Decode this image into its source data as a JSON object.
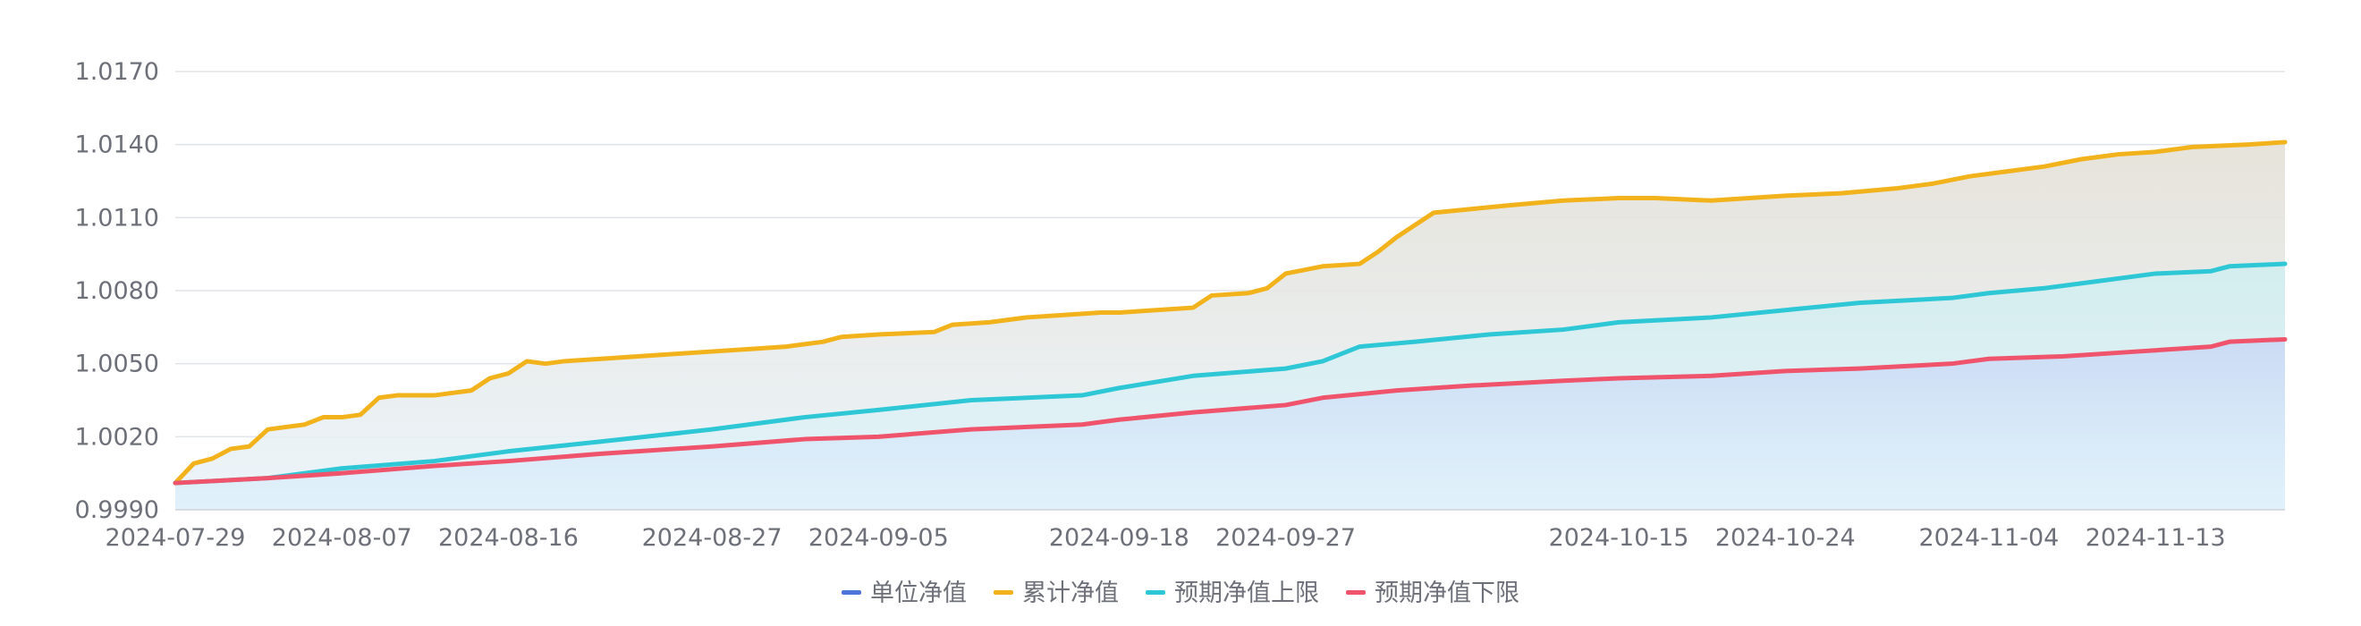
{
  "chart_data": {
    "type": "area",
    "title": "",
    "xlabel": "",
    "ylabel": "",
    "y_tick_labels": [
      "0.9990",
      "1.0020",
      "1.0050",
      "1.0080",
      "1.0110",
      "1.0140",
      "1.0170"
    ],
    "ylim": [
      0.999,
      1.017
    ],
    "x_tick_labels": [
      "2024-07-29",
      "2024-08-07",
      "2024-08-16",
      "2024-08-27",
      "2024-09-05",
      "2024-09-18",
      "2024-09-27",
      "2024-10-15",
      "2024-10-24",
      "2024-11-04",
      "2024-11-13"
    ],
    "grid": true,
    "legend_position": "bottom",
    "colors": {
      "unit_nav": "#4f74d9",
      "cumulative_nav": "#f2b21b",
      "upper_bound": "#2ec7d6",
      "lower_bound": "#f0546c",
      "grid": "#e0e3e8",
      "axis": "#6e7079"
    },
    "series": [
      {
        "name": "单位净值",
        "color": "#4f74d9",
        "points": []
      },
      {
        "name": "累计净值",
        "color": "#f2b21b",
        "points": [
          [
            "2024-07-29",
            1.0001
          ],
          [
            "2024-07-30",
            1.0009
          ],
          [
            "2024-07-31",
            1.0011
          ],
          [
            "2024-08-01",
            1.0015
          ],
          [
            "2024-08-02",
            1.0016
          ],
          [
            "2024-08-03",
            1.0023
          ],
          [
            "2024-08-04",
            1.0024
          ],
          [
            "2024-08-05",
            1.0025
          ],
          [
            "2024-08-06",
            1.0028
          ],
          [
            "2024-08-07",
            1.0028
          ],
          [
            "2024-08-08",
            1.0029
          ],
          [
            "2024-08-09",
            1.0036
          ],
          [
            "2024-08-10",
            1.0037
          ],
          [
            "2024-08-12",
            1.0037
          ],
          [
            "2024-08-13",
            1.0038
          ],
          [
            "2024-08-14",
            1.0039
          ],
          [
            "2024-08-15",
            1.0044
          ],
          [
            "2024-08-16",
            1.0046
          ],
          [
            "2024-08-17",
            1.0051
          ],
          [
            "2024-08-18",
            1.005
          ],
          [
            "2024-08-19",
            1.0051
          ],
          [
            "2024-08-21",
            1.0052
          ],
          [
            "2024-08-23",
            1.0053
          ],
          [
            "2024-08-25",
            1.0054
          ],
          [
            "2024-08-27",
            1.0055
          ],
          [
            "2024-08-29",
            1.0056
          ],
          [
            "2024-08-31",
            1.0057
          ],
          [
            "2024-09-01",
            1.0058
          ],
          [
            "2024-09-02",
            1.0059
          ],
          [
            "2024-09-03",
            1.0061
          ],
          [
            "2024-09-05",
            1.0062
          ],
          [
            "2024-09-08",
            1.0063
          ],
          [
            "2024-09-09",
            1.0066
          ],
          [
            "2024-09-11",
            1.0067
          ],
          [
            "2024-09-13",
            1.0069
          ],
          [
            "2024-09-15",
            1.007
          ],
          [
            "2024-09-17",
            1.0071
          ],
          [
            "2024-09-18",
            1.0071
          ],
          [
            "2024-09-20",
            1.0072
          ],
          [
            "2024-09-22",
            1.0073
          ],
          [
            "2024-09-23",
            1.0078
          ],
          [
            "2024-09-25",
            1.0079
          ],
          [
            "2024-09-26",
            1.0081
          ],
          [
            "2024-09-27",
            1.0087
          ],
          [
            "2024-09-29",
            1.009
          ],
          [
            "2024-10-01",
            1.0091
          ],
          [
            "2024-10-02",
            1.0096
          ],
          [
            "2024-10-03",
            1.0102
          ],
          [
            "2024-10-05",
            1.0112
          ],
          [
            "2024-10-09",
            1.0115
          ],
          [
            "2024-10-12",
            1.0117
          ],
          [
            "2024-10-15",
            1.0118
          ],
          [
            "2024-10-17",
            1.0118
          ],
          [
            "2024-10-20",
            1.0117
          ],
          [
            "2024-10-24",
            1.0119
          ],
          [
            "2024-10-27",
            1.012
          ],
          [
            "2024-10-30",
            1.0122
          ],
          [
            "2024-11-01",
            1.0124
          ],
          [
            "2024-11-03",
            1.0127
          ],
          [
            "2024-11-05",
            1.0129
          ],
          [
            "2024-11-07",
            1.0131
          ],
          [
            "2024-11-09",
            1.0134
          ],
          [
            "2024-11-11",
            1.0136
          ],
          [
            "2024-11-13",
            1.0137
          ],
          [
            "2024-11-15",
            1.0139
          ],
          [
            "2024-11-18",
            1.014
          ],
          [
            "2024-11-20",
            1.0141
          ]
        ]
      },
      {
        "name": "预期净值上限",
        "color": "#2ec7d6",
        "points": [
          [
            "2024-07-29",
            1.0001
          ],
          [
            "2024-08-03",
            1.0003
          ],
          [
            "2024-08-07",
            1.0007
          ],
          [
            "2024-08-12",
            1.001
          ],
          [
            "2024-08-16",
            1.0014
          ],
          [
            "2024-08-21",
            1.0018
          ],
          [
            "2024-08-27",
            1.0023
          ],
          [
            "2024-09-01",
            1.0028
          ],
          [
            "2024-09-05",
            1.0031
          ],
          [
            "2024-09-10",
            1.0035
          ],
          [
            "2024-09-16",
            1.0037
          ],
          [
            "2024-09-18",
            1.004
          ],
          [
            "2024-09-22",
            1.0045
          ],
          [
            "2024-09-27",
            1.0048
          ],
          [
            "2024-09-29",
            1.0051
          ],
          [
            "2024-10-01",
            1.0057
          ],
          [
            "2024-10-04",
            1.0059
          ],
          [
            "2024-10-08",
            1.0062
          ],
          [
            "2024-10-12",
            1.0064
          ],
          [
            "2024-10-15",
            1.0067
          ],
          [
            "2024-10-20",
            1.0069
          ],
          [
            "2024-10-24",
            1.0072
          ],
          [
            "2024-10-28",
            1.0075
          ],
          [
            "2024-11-02",
            1.0077
          ],
          [
            "2024-11-04",
            1.0079
          ],
          [
            "2024-11-07",
            1.0081
          ],
          [
            "2024-11-10",
            1.0084
          ],
          [
            "2024-11-13",
            1.0087
          ],
          [
            "2024-11-16",
            1.0088
          ],
          [
            "2024-11-17",
            1.009
          ],
          [
            "2024-11-20",
            1.0091
          ]
        ]
      },
      {
        "name": "预期净值下限",
        "color": "#f0546c",
        "points": [
          [
            "2024-07-29",
            1.0001
          ],
          [
            "2024-08-03",
            1.0003
          ],
          [
            "2024-08-07",
            1.0005
          ],
          [
            "2024-08-12",
            1.0008
          ],
          [
            "2024-08-16",
            1.001
          ],
          [
            "2024-08-21",
            1.0013
          ],
          [
            "2024-08-27",
            1.0016
          ],
          [
            "2024-09-01",
            1.0019
          ],
          [
            "2024-09-05",
            1.002
          ],
          [
            "2024-09-10",
            1.0023
          ],
          [
            "2024-09-16",
            1.0025
          ],
          [
            "2024-09-18",
            1.0027
          ],
          [
            "2024-09-22",
            1.003
          ],
          [
            "2024-09-27",
            1.0033
          ],
          [
            "2024-09-29",
            1.0036
          ],
          [
            "2024-10-03",
            1.0039
          ],
          [
            "2024-10-07",
            1.0041
          ],
          [
            "2024-10-12",
            1.0043
          ],
          [
            "2024-10-15",
            1.0044
          ],
          [
            "2024-10-20",
            1.0045
          ],
          [
            "2024-10-24",
            1.0047
          ],
          [
            "2024-10-28",
            1.0048
          ],
          [
            "2024-11-02",
            1.005
          ],
          [
            "2024-11-04",
            1.0052
          ],
          [
            "2024-11-08",
            1.0053
          ],
          [
            "2024-11-12",
            1.0055
          ],
          [
            "2024-11-16",
            1.0057
          ],
          [
            "2024-11-17",
            1.0059
          ],
          [
            "2024-11-20",
            1.006
          ]
        ]
      }
    ]
  }
}
